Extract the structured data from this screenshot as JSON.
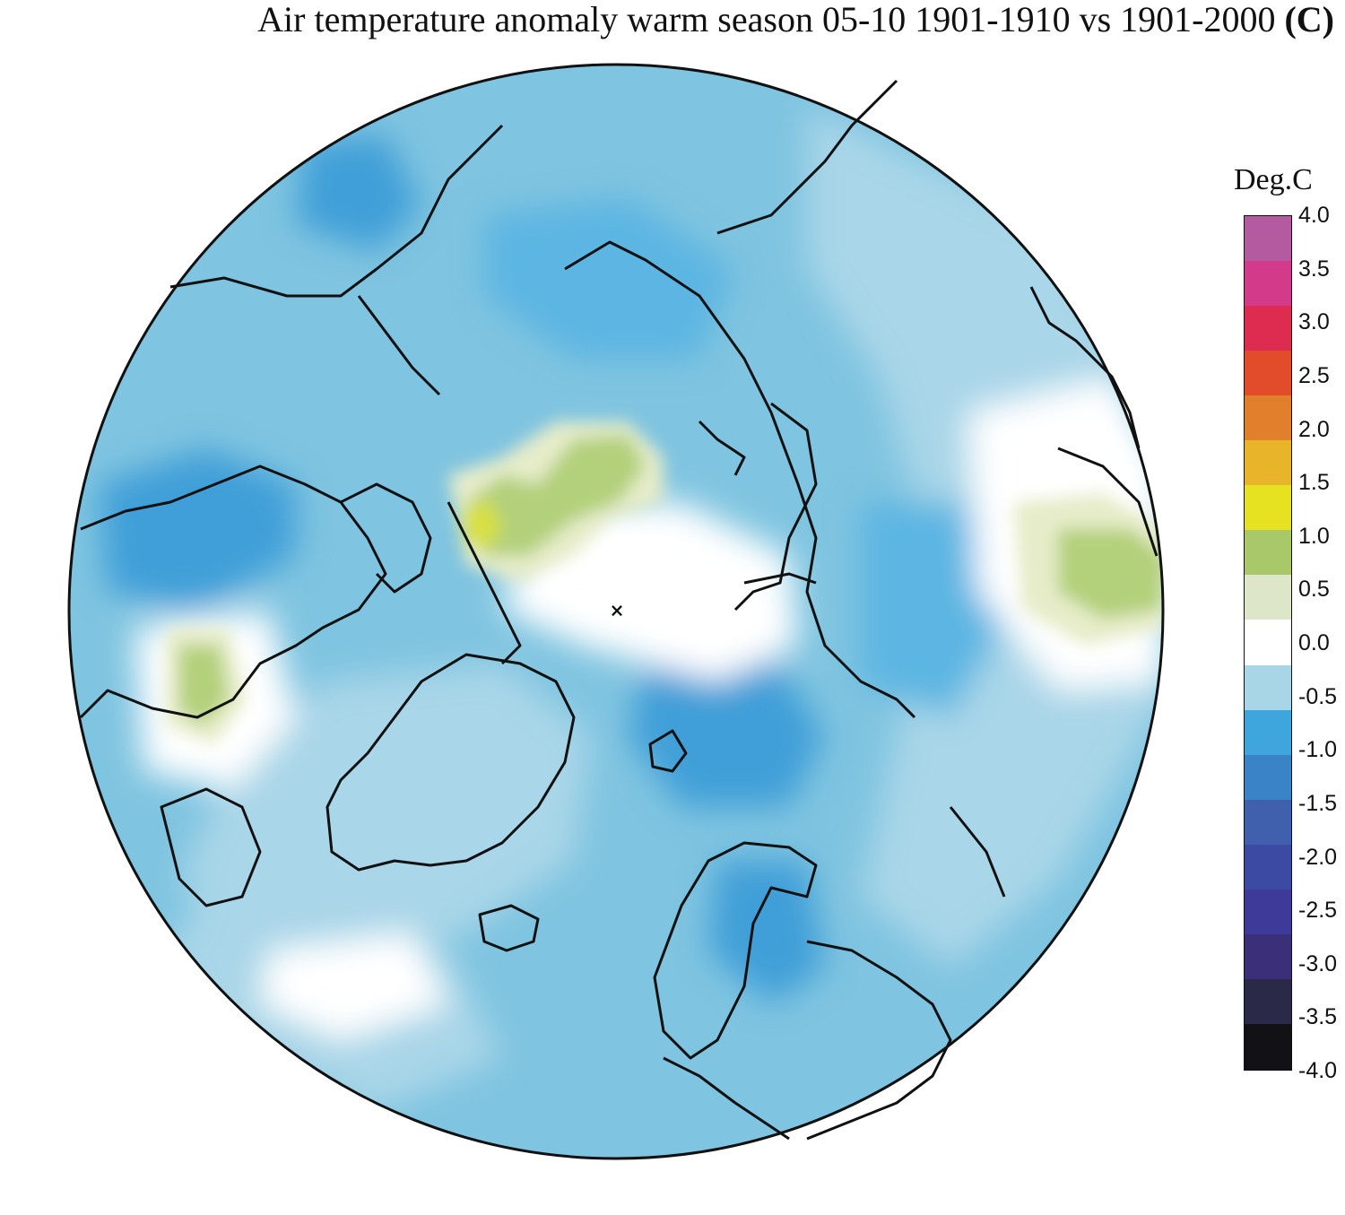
{
  "title": {
    "main": "Air temperature anomaly warm season 05-10 1901-1910 vs 1901-2000",
    "unit": "(C)"
  },
  "legend": {
    "title": "Deg.C",
    "ticks": [
      "4.0",
      "3.5",
      "3.0",
      "2.5",
      "2.0",
      "1.5",
      "1.0",
      "0.5",
      "0.0",
      "-0.5",
      "-1.0",
      "-1.5",
      "-2.0",
      "-2.5",
      "-3.0",
      "-3.5",
      "-4.0"
    ],
    "range": [
      -4.0,
      4.0
    ],
    "colors": [
      "#111116",
      "#2a2a48",
      "#3b2f7a",
      "#3e3a9a",
      "#3d4aa4",
      "#4060ae",
      "#3a83c6",
      "#3ea6dc",
      "#a8d6e6",
      "#ffffff",
      "#dde6c8",
      "#a8c86a",
      "#e6e222",
      "#e8b42a",
      "#e0802c",
      "#e24c2a",
      "#de2c50",
      "#d43a8a",
      "#b45aa0"
    ]
  },
  "map": {
    "projection": "north-polar-stereographic",
    "pole_marker": "×",
    "colors": {
      "ocean_base": "#7fc4e0",
      "cool_strong": "#3f9fd8",
      "cool_mid": "#5bb5e2",
      "cool_light": "#a9d6e8",
      "neutral": "#ffffff",
      "warm_light": "#e6ecc9",
      "warm_mid": "#b3d07a",
      "warm_peak": "#d8e040",
      "coast": "#111111"
    }
  }
}
